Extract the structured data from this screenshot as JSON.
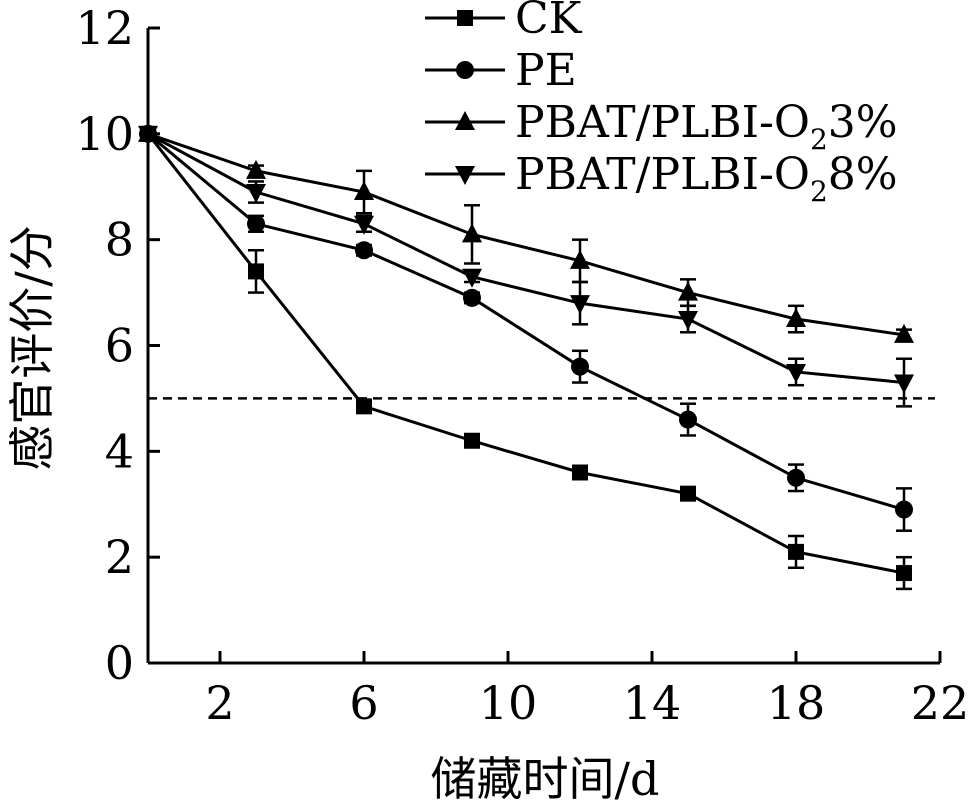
{
  "chart_data": {
    "type": "line",
    "xlabel": "储藏时间/d",
    "ylabel": "感官评价/分",
    "xlim": [
      0,
      22
    ],
    "ylim": [
      0,
      12
    ],
    "xticks": [
      2,
      6,
      10,
      14,
      18,
      22
    ],
    "yticks": [
      0,
      2,
      4,
      6,
      8,
      10,
      12
    ],
    "x": [
      0,
      3,
      6,
      9,
      12,
      15,
      18,
      21
    ],
    "grid": false,
    "legend_position": "top-right",
    "reference_line": {
      "y": 5,
      "style": "dashed"
    },
    "series": [
      {
        "name": "CK",
        "name_parts": {
          "main": "CK",
          "sub": "",
          "rest": ""
        },
        "marker": "square",
        "values": [
          10.0,
          7.4,
          4.85,
          4.2,
          3.6,
          3.2,
          2.1,
          1.7
        ],
        "errors": [
          0,
          0.4,
          0.1,
          0.1,
          0.1,
          0.1,
          0.3,
          0.3
        ]
      },
      {
        "name": "PE",
        "name_parts": {
          "main": "PE",
          "sub": "",
          "rest": ""
        },
        "marker": "circle",
        "values": [
          10.0,
          8.3,
          7.8,
          6.9,
          5.6,
          4.6,
          3.5,
          2.9
        ],
        "errors": [
          0,
          0.15,
          0.1,
          0.1,
          0.3,
          0.3,
          0.25,
          0.4
        ]
      },
      {
        "name": "PBAT/PLBI-O₂3%",
        "name_parts": {
          "main": "PBAT/PLBI-O",
          "sub": "2",
          "rest": "3%"
        },
        "marker": "triangle-up",
        "values": [
          10.0,
          9.3,
          8.9,
          8.1,
          7.6,
          7.0,
          6.5,
          6.2
        ],
        "errors": [
          0,
          0.1,
          0.4,
          0.55,
          0.4,
          0.25,
          0.25,
          0.1
        ]
      },
      {
        "name": "PBAT/PLBI-O₂8%",
        "name_parts": {
          "main": "PBAT/PLBI-O",
          "sub": "2",
          "rest": "8%"
        },
        "marker": "triangle-down",
        "values": [
          10.0,
          8.9,
          8.3,
          7.3,
          6.8,
          6.5,
          5.5,
          5.3
        ],
        "errors": [
          0,
          0.2,
          0.15,
          0.1,
          0.4,
          0.25,
          0.25,
          0.45
        ]
      }
    ]
  }
}
